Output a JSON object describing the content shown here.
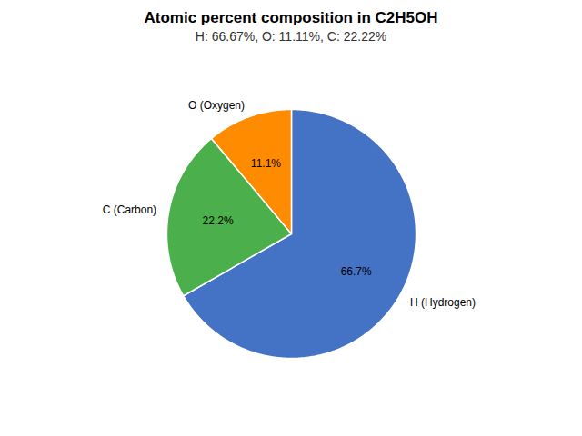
{
  "chart_data": {
    "type": "pie",
    "title": "Atomic percent composition in C2H5OH",
    "subtitle": "H: 66.67%, O: 11.11%, C: 22.22%",
    "categories": [
      "H (Hydrogen)",
      "C (Carbon)",
      "O (Oxygen)"
    ],
    "values": [
      66.7,
      22.2,
      11.1
    ],
    "value_labels": [
      "66.7%",
      "22.2%",
      "11.1%"
    ],
    "colors": [
      "#4472C4",
      "#4BAF4B",
      "#FF8C00"
    ],
    "data_labels": true
  }
}
